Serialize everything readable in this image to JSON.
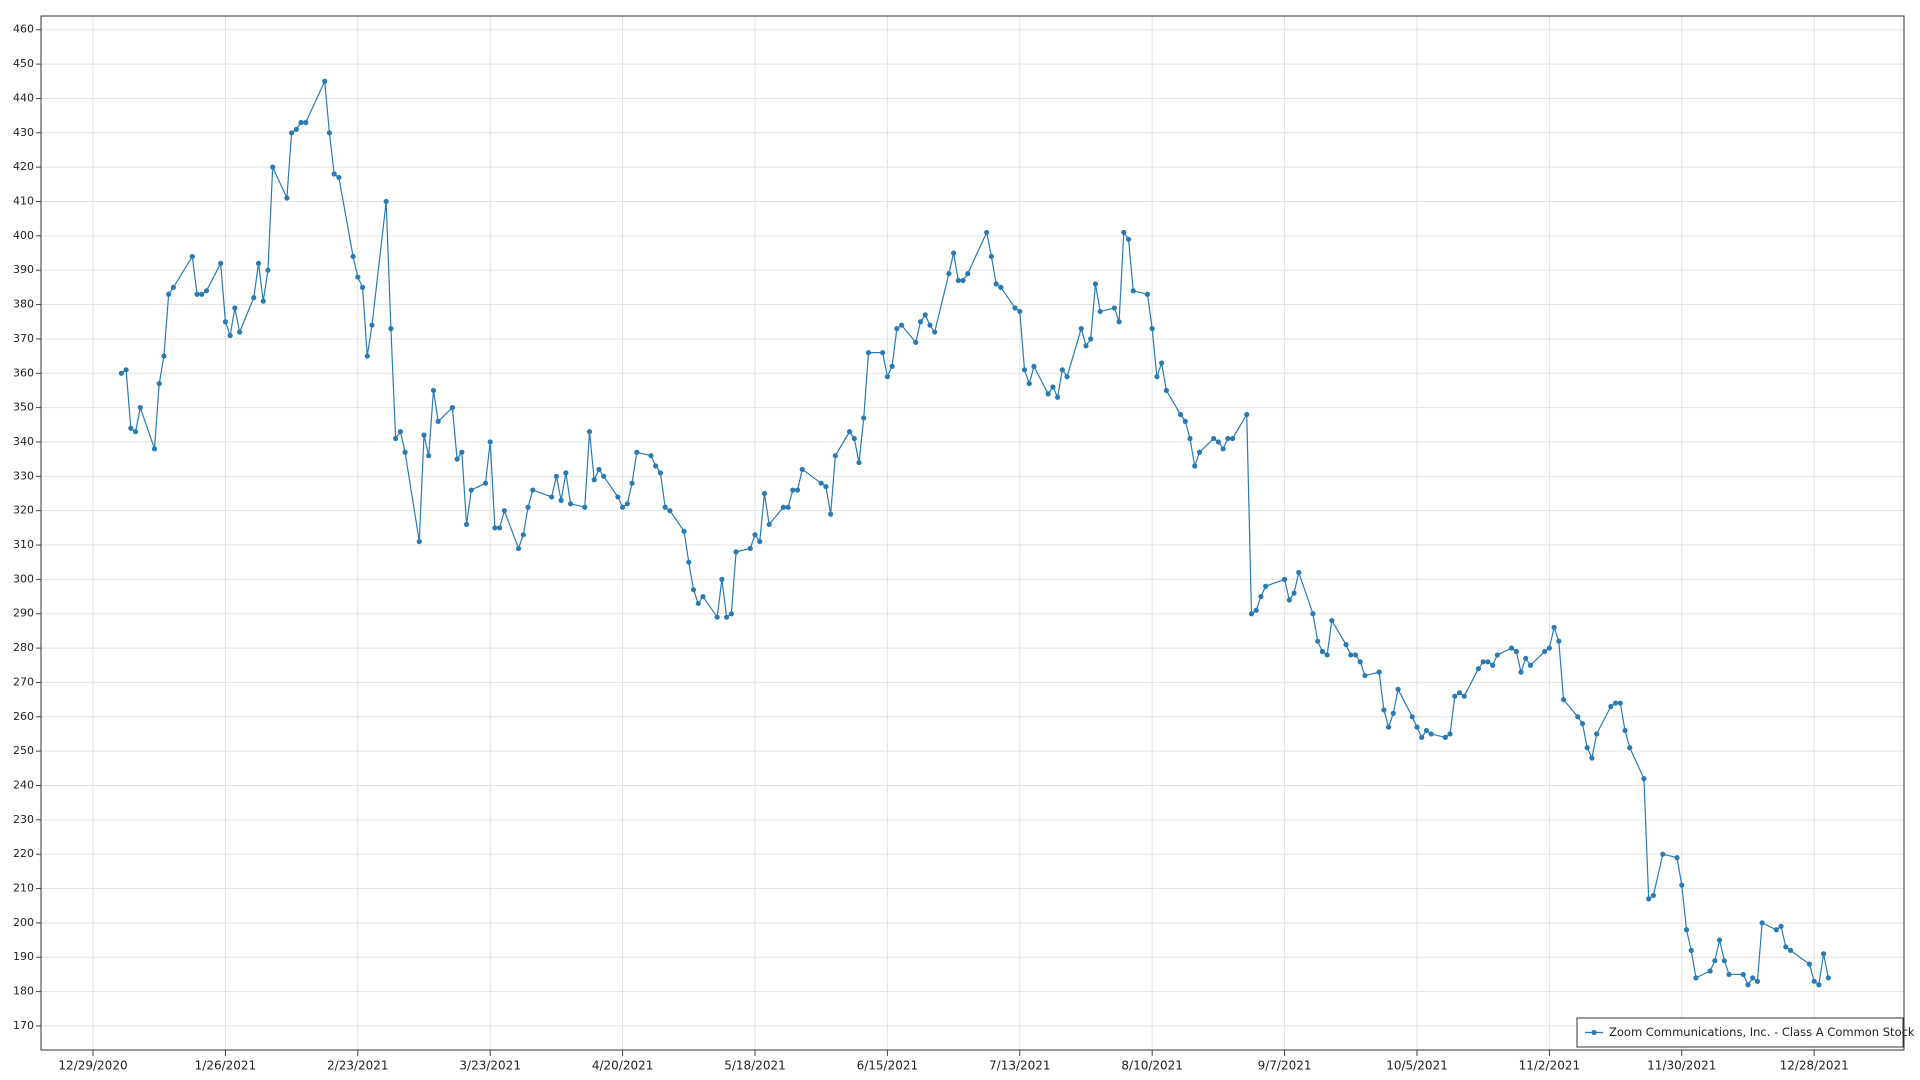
{
  "chart_data": {
    "type": "line",
    "x": [
      "1/4/2021",
      "1/5/2021",
      "1/6/2021",
      "1/7/2021",
      "1/8/2021",
      "1/11/2021",
      "1/12/2021",
      "1/13/2021",
      "1/14/2021",
      "1/15/2021",
      "1/19/2021",
      "1/20/2021",
      "1/21/2021",
      "1/22/2021",
      "1/25/2021",
      "1/26/2021",
      "1/27/2021",
      "1/28/2021",
      "1/29/2021",
      "2/1/2021",
      "2/2/2021",
      "2/3/2021",
      "2/4/2021",
      "2/5/2021",
      "2/8/2021",
      "2/9/2021",
      "2/10/2021",
      "2/11/2021",
      "2/12/2021",
      "2/16/2021",
      "2/17/2021",
      "2/18/2021",
      "2/19/2021",
      "2/22/2021",
      "2/23/2021",
      "2/24/2021",
      "2/25/2021",
      "2/26/2021",
      "3/1/2021",
      "3/2/2021",
      "3/3/2021",
      "3/4/2021",
      "3/5/2021",
      "3/8/2021",
      "3/9/2021",
      "3/10/2021",
      "3/11/2021",
      "3/12/2021",
      "3/15/2021",
      "3/16/2021",
      "3/17/2021",
      "3/18/2021",
      "3/19/2021",
      "3/22/2021",
      "3/23/2021",
      "3/24/2021",
      "3/25/2021",
      "3/26/2021",
      "3/29/2021",
      "3/30/2021",
      "3/31/2021",
      "4/1/2021",
      "4/5/2021",
      "4/6/2021",
      "4/7/2021",
      "4/8/2021",
      "4/9/2021",
      "4/12/2021",
      "4/13/2021",
      "4/14/2021",
      "4/15/2021",
      "4/16/2021",
      "4/19/2021",
      "4/20/2021",
      "4/21/2021",
      "4/22/2021",
      "4/23/2021",
      "4/26/2021",
      "4/27/2021",
      "4/28/2021",
      "4/29/2021",
      "4/30/2021",
      "5/3/2021",
      "5/4/2021",
      "5/5/2021",
      "5/6/2021",
      "5/7/2021",
      "5/10/2021",
      "5/11/2021",
      "5/12/2021",
      "5/13/2021",
      "5/14/2021",
      "5/17/2021",
      "5/18/2021",
      "5/19/2021",
      "5/20/2021",
      "5/21/2021",
      "5/24/2021",
      "5/25/2021",
      "5/26/2021",
      "5/27/2021",
      "5/28/2021",
      "6/1/2021",
      "6/2/2021",
      "6/3/2021",
      "6/4/2021",
      "6/7/2021",
      "6/8/2021",
      "6/9/2021",
      "6/10/2021",
      "6/11/2021",
      "6/14/2021",
      "6/15/2021",
      "6/16/2021",
      "6/17/2021",
      "6/18/2021",
      "6/21/2021",
      "6/22/2021",
      "6/23/2021",
      "6/24/2021",
      "6/25/2021",
      "6/28/2021",
      "6/29/2021",
      "6/30/2021",
      "7/1/2021",
      "7/2/2021",
      "7/6/2021",
      "7/7/2021",
      "7/8/2021",
      "7/9/2021",
      "7/12/2021",
      "7/13/2021",
      "7/14/2021",
      "7/15/2021",
      "7/16/2021",
      "7/19/2021",
      "7/20/2021",
      "7/21/2021",
      "7/22/2021",
      "7/23/2021",
      "7/26/2021",
      "7/27/2021",
      "7/28/2021",
      "7/29/2021",
      "7/30/2021",
      "8/2/2021",
      "8/3/2021",
      "8/4/2021",
      "8/5/2021",
      "8/6/2021",
      "8/9/2021",
      "8/10/2021",
      "8/11/2021",
      "8/12/2021",
      "8/13/2021",
      "8/16/2021",
      "8/17/2021",
      "8/18/2021",
      "8/19/2021",
      "8/20/2021",
      "8/23/2021",
      "8/24/2021",
      "8/25/2021",
      "8/26/2021",
      "8/27/2021",
      "8/30/2021",
      "8/31/2021",
      "9/1/2021",
      "9/2/2021",
      "9/3/2021",
      "9/7/2021",
      "9/8/2021",
      "9/9/2021",
      "9/10/2021",
      "9/13/2021",
      "9/14/2021",
      "9/15/2021",
      "9/16/2021",
      "9/17/2021",
      "9/20/2021",
      "9/21/2021",
      "9/22/2021",
      "9/23/2021",
      "9/24/2021",
      "9/27/2021",
      "9/28/2021",
      "9/29/2021",
      "9/30/2021",
      "10/1/2021",
      "10/4/2021",
      "10/5/2021",
      "10/6/2021",
      "10/7/2021",
      "10/8/2021",
      "10/11/2021",
      "10/12/2021",
      "10/13/2021",
      "10/14/2021",
      "10/15/2021",
      "10/18/2021",
      "10/19/2021",
      "10/20/2021",
      "10/21/2021",
      "10/22/2021",
      "10/25/2021",
      "10/26/2021",
      "10/27/2021",
      "10/28/2021",
      "10/29/2021",
      "11/1/2021",
      "11/2/2021",
      "11/3/2021",
      "11/4/2021",
      "11/5/2021",
      "11/8/2021",
      "11/9/2021",
      "11/10/2021",
      "11/11/2021",
      "11/12/2021",
      "11/15/2021",
      "11/16/2021",
      "11/17/2021",
      "11/18/2021",
      "11/19/2021",
      "11/22/2021",
      "11/23/2021",
      "11/24/2021",
      "11/26/2021",
      "11/29/2021",
      "11/30/2021",
      "12/1/2021",
      "12/2/2021",
      "12/3/2021",
      "12/6/2021",
      "12/7/2021",
      "12/8/2021",
      "12/9/2021",
      "12/10/2021",
      "12/13/2021",
      "12/14/2021",
      "12/15/2021",
      "12/16/2021",
      "12/17/2021",
      "12/20/2021",
      "12/21/2021",
      "12/22/2021",
      "12/23/2021",
      "12/27/2021",
      "12/28/2021",
      "12/29/2021",
      "12/30/2021",
      "12/31/2021"
    ],
    "series": [
      {
        "name": "Zoom Communications, Inc. - Class A Common Stock",
        "color": "#2b7bb2",
        "values": [
          360,
          361,
          344,
          343,
          350,
          338,
          357,
          365,
          383,
          385,
          394,
          383,
          383,
          384,
          392,
          375,
          371,
          379,
          372,
          382,
          392,
          381,
          390,
          420,
          411,
          430,
          431,
          433,
          433,
          445,
          430,
          418,
          417,
          394,
          388,
          385,
          365,
          374,
          410,
          373,
          341,
          343,
          337,
          311,
          342,
          336,
          355,
          346,
          350,
          335,
          337,
          316,
          326,
          328,
          340,
          315,
          315,
          320,
          309,
          313,
          321,
          326,
          324,
          330,
          323,
          331,
          322,
          321,
          343,
          329,
          332,
          330,
          324,
          321,
          322,
          328,
          337,
          336,
          333,
          331,
          321,
          320,
          314,
          305,
          297,
          293,
          295,
          289,
          300,
          289,
          290,
          308,
          309,
          313,
          311,
          325,
          316,
          321,
          321,
          326,
          326,
          332,
          328,
          327,
          319,
          336,
          343,
          341,
          334,
          347,
          366,
          366,
          359,
          362,
          373,
          374,
          369,
          375,
          377,
          374,
          372,
          389,
          395,
          387,
          387,
          389,
          401,
          394,
          386,
          385,
          379,
          378,
          361,
          357,
          362,
          354,
          356,
          353,
          361,
          359,
          373,
          368,
          370,
          386,
          378,
          379,
          375,
          401,
          399,
          384,
          383,
          373,
          359,
          363,
          355,
          348,
          346,
          341,
          333,
          337,
          341,
          340,
          338,
          341,
          341,
          348,
          290,
          291,
          295,
          298,
          300,
          294,
          296,
          302,
          290,
          282,
          279,
          278,
          288,
          281,
          278,
          278,
          276,
          272,
          273,
          262,
          257,
          261,
          268,
          260,
          257,
          254,
          256,
          255,
          254,
          255,
          266,
          267,
          266,
          274,
          276,
          276,
          275,
          278,
          280,
          279,
          273,
          277,
          275,
          279,
          280,
          286,
          282,
          265,
          260,
          258,
          251,
          248,
          255,
          263,
          264,
          264,
          256,
          251,
          242,
          207,
          208,
          220,
          219,
          211,
          198,
          192,
          184,
          186,
          189,
          195,
          189,
          185,
          185,
          182,
          184,
          183,
          200,
          198,
          199,
          193,
          192,
          188,
          183,
          182,
          191,
          184
        ]
      }
    ],
    "xlim": [
      "12/18/2020",
      "1/16/2022"
    ],
    "xticks": [
      "12/29/2020",
      "1/26/2021",
      "2/23/2021",
      "3/23/2021",
      "4/20/2021",
      "5/18/2021",
      "6/15/2021",
      "7/13/2021",
      "8/10/2021",
      "9/7/2021",
      "10/5/2021",
      "11/2/2021",
      "11/30/2021",
      "12/28/2021"
    ],
    "ylim": [
      163,
      464
    ],
    "yticks": [
      170,
      180,
      190,
      200,
      210,
      220,
      230,
      240,
      250,
      260,
      270,
      280,
      290,
      300,
      310,
      320,
      330,
      340,
      350,
      360,
      370,
      380,
      390,
      400,
      410,
      420,
      430,
      440,
      450,
      460
    ],
    "grid": true,
    "legend": "lower right"
  }
}
